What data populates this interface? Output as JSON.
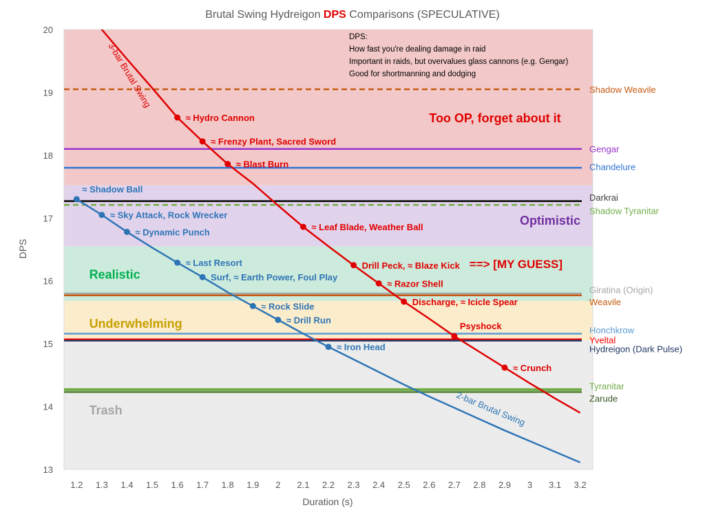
{
  "chart_data": {
    "type": "line",
    "title_parts": [
      "Brutal Swing Hydreigon ",
      "DPS",
      " Comparisons (SPECULATIVE)"
    ],
    "title_colors": [
      "#595959",
      "#e00000",
      "#595959"
    ],
    "xlabel": "Duration (s)",
    "ylabel": "DPS",
    "xlim": [
      1.15,
      3.25
    ],
    "ylim": [
      13,
      20
    ],
    "x_ticks": [
      "1.2",
      "1.3",
      "1.4",
      "1.5",
      "1.6",
      "1.7",
      "1.8",
      "1.9",
      "2",
      "2.1",
      "2.2",
      "2.3",
      "2.4",
      "2.5",
      "2.6",
      "2.7",
      "2.8",
      "2.9",
      "3",
      "3.1",
      "3.2"
    ],
    "y_ticks": [
      "13",
      "14",
      "15",
      "16",
      "17",
      "18",
      "19",
      "20"
    ],
    "info_box": [
      "DPS:",
      "How fast you're dealing damage in raid",
      "Important in raids, but overvalues glass cannons (e.g. Gengar)",
      "Good for shortmanning and dodging"
    ],
    "bands": [
      {
        "label": "Too OP, forget about it",
        "from": 17.52,
        "to": 20,
        "color": "#f2c8c8",
        "label_color": "#e00000",
        "label_x": 2.6,
        "label_y": 18.6
      },
      {
        "label": "Optimistic",
        "from": 16.55,
        "to": 17.52,
        "color": "#e2d3ec",
        "label_color": "#7030a0",
        "label_x": 2.96,
        "label_y": 16.97
      },
      {
        "label": "Realistic",
        "from": 15.68,
        "to": 16.55,
        "color": "#cdebdc",
        "label_color": "#00b050",
        "label_x": 1.25,
        "label_y": 16.11
      },
      {
        "label": "Underwhelming",
        "from": 15.05,
        "to": 15.68,
        "color": "#fbeccc",
        "label_color": "#c8a000",
        "label_x": 1.25,
        "label_y": 15.33
      },
      {
        "label": "Trash",
        "from": 13,
        "to": 15.05,
        "color": "#ececec",
        "label_color": "#a6a6a6",
        "label_x": 1.25,
        "label_y": 13.95
      }
    ],
    "references": [
      {
        "label": "Shadow Weavile",
        "y": 19.05,
        "color": "#c55a11",
        "dashed": true,
        "label_y": 19.05
      },
      {
        "label": "Gengar",
        "y": 18.1,
        "color": "#9933cc",
        "dashed": false,
        "label_y": 18.1
      },
      {
        "label": "Chandelure",
        "y": 17.8,
        "color": "#2e75d6",
        "dashed": false,
        "label_y": 17.82
      },
      {
        "label": "Darkrai",
        "y": 17.27,
        "color": "#000000",
        "dashed": false,
        "label_y": 17.33,
        "label_color": "#404040"
      },
      {
        "label": "Shadow Tyranitar",
        "y": 17.21,
        "color": "#70ad47",
        "dashed": true,
        "label_y": 17.12
      },
      {
        "label": "Giratina (Origin)",
        "y": 15.8,
        "color": "#a6a6a6",
        "dashed": false,
        "label_y": 15.86
      },
      {
        "label": "Weavile",
        "y": 15.77,
        "color": "#c55a11",
        "dashed": false,
        "label_y": 15.67
      },
      {
        "label": "Honchkrow",
        "y": 15.16,
        "color": "#5b9bd5",
        "dashed": false,
        "label_y": 15.22
      },
      {
        "label": "Yveltal",
        "y": 15.07,
        "color": "#ff0000",
        "dashed": false,
        "label_y": 15.06
      },
      {
        "label": "Hydreigon (Dark Pulse)",
        "y": 15.05,
        "color": "#203864",
        "dashed": false,
        "label_y": 14.92,
        "label_color": "#203864"
      },
      {
        "label": "Tyranitar",
        "y": 14.27,
        "color": "#70ad47",
        "dashed": false,
        "label_y": 14.33,
        "wide": true
      },
      {
        "label": "Zarude",
        "y": 14.23,
        "color": "#548235",
        "dashed": false,
        "label_y": 14.13,
        "label_color": "#375623"
      }
    ],
    "series": [
      {
        "name": "3-bar Brutal Swing",
        "color": "#e00000",
        "x": [
          1.2,
          1.3,
          1.4,
          1.5,
          1.6,
          1.7,
          1.8,
          1.9,
          2.0,
          2.1,
          2.2,
          2.3,
          2.4,
          2.5,
          2.6,
          2.7,
          2.8,
          2.9,
          3.0,
          3.1,
          3.2
        ],
        "y": [
          20.45,
          20.0,
          19.53,
          19.07,
          18.6,
          18.22,
          17.86,
          17.55,
          17.2,
          16.86,
          16.55,
          16.25,
          15.96,
          15.67,
          15.4,
          15.12,
          14.87,
          14.62,
          14.37,
          14.13,
          13.9
        ],
        "label_x": 1.4,
        "label_y": 19.25,
        "label_angle": 59
      },
      {
        "name": "2-bar Brutal Swing",
        "color": "#2e75b6",
        "x": [
          1.2,
          1.3,
          1.4,
          1.5,
          1.6,
          1.7,
          1.8,
          1.9,
          2.0,
          2.1,
          2.2,
          2.3,
          2.4,
          2.5,
          2.6,
          2.7,
          2.8,
          2.9,
          3.0,
          3.1,
          3.2
        ],
        "y": [
          17.3,
          17.05,
          16.78,
          16.53,
          16.29,
          16.06,
          15.82,
          15.6,
          15.38,
          15.16,
          14.95,
          14.75,
          14.55,
          14.35,
          14.16,
          13.98,
          13.8,
          13.62,
          13.45,
          13.28,
          13.11
        ],
        "label_x": 2.84,
        "label_y": 13.92,
        "label_angle": 23
      }
    ],
    "annotations": [
      {
        "text": "≈ Hydro Cannon",
        "x": 1.6,
        "y": 18.6,
        "color": "#e00000",
        "series": 0
      },
      {
        "text": "≈ Frenzy Plant, Sacred Sword",
        "x": 1.7,
        "y": 18.22,
        "color": "#e00000",
        "series": 0
      },
      {
        "text": "≈ Blast Burn",
        "x": 1.8,
        "y": 17.86,
        "color": "#e00000",
        "series": 0
      },
      {
        "text": "≈ Leaf Blade, Weather Ball",
        "x": 2.1,
        "y": 16.86,
        "color": "#e00000",
        "series": 0
      },
      {
        "text": "Drill Peck, ≈ Blaze Kick",
        "x": 2.3,
        "y": 16.25,
        "color": "#e00000",
        "series": 0
      },
      {
        "text": "≈ Razor Shell",
        "x": 2.4,
        "y": 15.96,
        "color": "#e00000",
        "series": 0
      },
      {
        "text": "Discharge, ≈ Icicle Spear",
        "x": 2.5,
        "y": 15.67,
        "color": "#e00000",
        "series": 0
      },
      {
        "text": "Psyshock",
        "x": 2.7,
        "y": 15.12,
        "color": "#e00000",
        "series": 0,
        "above": true
      },
      {
        "text": "≈ Crunch",
        "x": 2.9,
        "y": 14.62,
        "color": "#e00000",
        "series": 0
      },
      {
        "text": "≈ Shadow Ball",
        "x": 1.2,
        "y": 17.3,
        "color": "#2e75b6",
        "series": 1,
        "above": true
      },
      {
        "text": "≈ Sky Attack, Rock Wrecker",
        "x": 1.3,
        "y": 17.05,
        "color": "#2e75b6",
        "series": 1
      },
      {
        "text": "≈ Dynamic Punch",
        "x": 1.4,
        "y": 16.78,
        "color": "#2e75b6",
        "series": 1
      },
      {
        "text": "≈ Last Resort",
        "x": 1.6,
        "y": 16.29,
        "color": "#2e75b6",
        "series": 1
      },
      {
        "text": "Surf, ≈ Earth Power, Foul Play",
        "x": 1.7,
        "y": 16.06,
        "color": "#2e75b6",
        "series": 1
      },
      {
        "text": "≈ Rock Slide",
        "x": 1.9,
        "y": 15.6,
        "color": "#2e75b6",
        "series": 1
      },
      {
        "text": "≈ Drill Run",
        "x": 2.0,
        "y": 15.38,
        "color": "#2e75b6",
        "series": 1
      },
      {
        "text": "≈ Iron Head",
        "x": 2.2,
        "y": 14.95,
        "color": "#2e75b6",
        "series": 1
      }
    ],
    "guess_label": "==> [MY GUESS]",
    "guess_color": "#e00000",
    "guess_x": 2.76,
    "guess_y": 16.27
  }
}
